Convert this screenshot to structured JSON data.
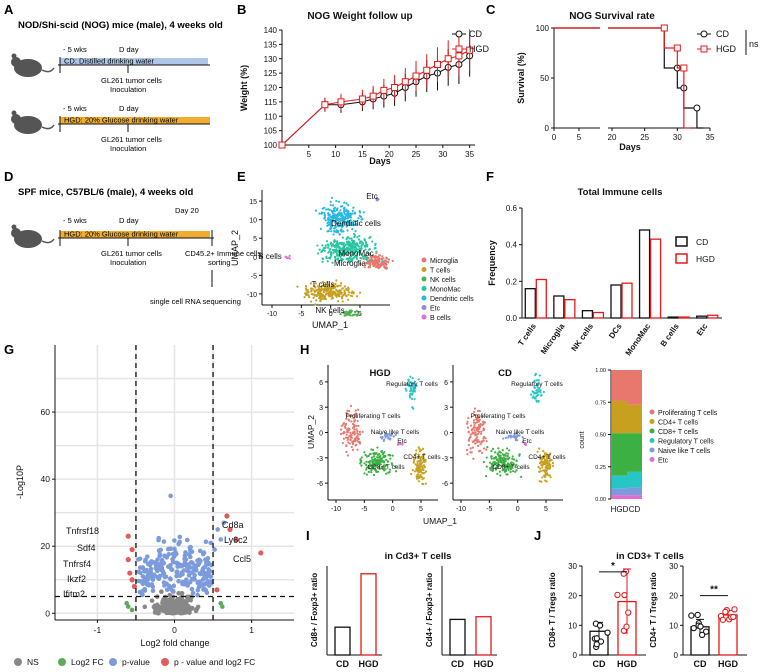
{
  "colors": {
    "cd": "#111111",
    "hgd": "#e41a1c",
    "water": "#aec7e8",
    "glucose": "#f0ad30",
    "ns": "#888888",
    "log2fc": "#5daa5d",
    "pvalue": "#7b9bdc",
    "both": "#e35a5a"
  },
  "panels": {
    "A": "A",
    "B": "B",
    "C": "C",
    "D": "D",
    "E": "E",
    "F": "F",
    "G": "G",
    "H": "H",
    "I": "I",
    "J": "J"
  },
  "panel_a": {
    "title": "NOD/Shi-scid (NOG) mice (male), 4 weeks old",
    "wk": "- 5 wks",
    "dday": "D day",
    "bar1": "CD: Distilled drinking water",
    "bar2": "HGD: 20% Glucose drinking water",
    "event1": "GL261 tumor cells",
    "event2": "Inoculation"
  },
  "panel_d": {
    "title": "SPF mice, C57BL/6 (male), 4 weeks old",
    "wk": "- 5 wks",
    "dday": "D day",
    "day20": "Day 20",
    "bar": "HGD: 20% Glucose drinking water",
    "event1": "GL261 tumor cells",
    "event2": "Inoculation",
    "sort1": "CD45.2+ Immune cells",
    "sort2": "sorting",
    "seq": "single cell RNA sequencing"
  },
  "chart_data": [
    {
      "id": "B",
      "type": "line",
      "title": "NOG Weight follow up",
      "xlabel": "Days",
      "ylabel": "Weight (%)",
      "xlim": [
        0,
        36
      ],
      "ylim": [
        100,
        140
      ],
      "xticks": [
        5,
        10,
        15,
        20,
        25,
        30,
        35
      ],
      "yticks": [
        100,
        105,
        110,
        115,
        120,
        125,
        130,
        135,
        140
      ],
      "series": [
        {
          "name": "CD",
          "x": [
            0,
            8,
            11,
            15,
            17,
            19,
            21,
            23,
            25,
            27,
            29,
            31,
            33,
            35
          ],
          "y": [
            100,
            114,
            114,
            115,
            116,
            117,
            118,
            120,
            122,
            124,
            125,
            127,
            128,
            131
          ]
        },
        {
          "name": "HGD",
          "x": [
            0,
            8,
            11,
            15,
            17,
            19,
            21,
            23,
            25,
            27,
            29,
            31,
            33,
            35
          ],
          "y": [
            100,
            114,
            115,
            116,
            117,
            119,
            120,
            122,
            124,
            126,
            128,
            130,
            131,
            133
          ]
        }
      ]
    },
    {
      "id": "C",
      "type": "line",
      "title": "NOG Survival rate",
      "xlabel": "Days",
      "ylabel": "Survival (%)",
      "annotation": "ns",
      "xticks": [
        0,
        5,
        20,
        25,
        30,
        35
      ],
      "yticks": [
        0,
        50,
        100
      ],
      "series": [
        {
          "name": "CD",
          "x": [
            0,
            28,
            28,
            30,
            30,
            31,
            31,
            33,
            33,
            34
          ],
          "y": [
            100,
            100,
            60,
            60,
            40,
            40,
            20,
            20,
            0,
            0
          ]
        },
        {
          "name": "HGD",
          "x": [
            0,
            28,
            28,
            30,
            30,
            31,
            31,
            32
          ],
          "y": [
            100,
            100,
            80,
            80,
            60,
            60,
            0,
            0
          ]
        }
      ]
    },
    {
      "id": "E",
      "type": "scatter",
      "xlabel": "UMAP_1",
      "ylabel": "UMAP_2",
      "xticks": [
        -10,
        -5,
        0,
        5
      ],
      "yticks": [
        -10,
        -5,
        0,
        5,
        10,
        15
      ],
      "legend": [
        "Microglia",
        "T cells",
        "NK cells",
        "MonoMac",
        "Dendritic cells",
        "Etc",
        "B cells"
      ],
      "labels": [
        "Etc",
        "Dendritic cells",
        "MonoMac",
        "B cells",
        "T cells",
        "Microglia",
        "NK cells"
      ]
    },
    {
      "id": "F",
      "type": "bar",
      "title": "Total Immune cells",
      "ylabel": "Frequency",
      "ylim": [
        0,
        0.6
      ],
      "yticks": [
        0.0,
        0.2,
        0.4,
        0.6
      ],
      "categories": [
        "T cells",
        "Microglia",
        "NK cells",
        "DCs",
        "MonoMac",
        "B cells",
        "Etc"
      ],
      "series": [
        {
          "name": "CD",
          "values": [
            0.16,
            0.12,
            0.04,
            0.18,
            0.48,
            0.005,
            0.01
          ]
        },
        {
          "name": "HGD",
          "values": [
            0.21,
            0.1,
            0.03,
            0.19,
            0.43,
            0.005,
            0.015
          ]
        }
      ]
    },
    {
      "id": "G",
      "type": "scatter",
      "xlabel": "Log2 fold change",
      "ylabel": "-Log10P",
      "xticks": [
        -1,
        0,
        1
      ],
      "yticks": [
        0,
        20,
        40,
        60
      ],
      "genes": [
        "Tnfrsf18",
        "Sdf4",
        "Tnfrsf4",
        "Ikzf2",
        "Ifitm2",
        "Cd8a",
        "Ly6c2",
        "Ccl5"
      ],
      "legend": [
        "NS",
        "Log2 FC",
        "p-value",
        "p - value and log2 FC"
      ]
    },
    {
      "id": "H",
      "type": "scatter",
      "panels": [
        "HGD",
        "CD"
      ],
      "xlabel": "UMAP_1",
      "ylabel": "UMAP_2",
      "xticks": [
        -10,
        -5,
        0,
        5
      ],
      "yticks": [
        -6,
        -3,
        0,
        3,
        6
      ],
      "labels": [
        "Regulatory T cells",
        "Proliferating T cells",
        "Naive like T cells",
        "Etc",
        "CD4+ T cells",
        "CD8+ T cells"
      ],
      "stacked": {
        "categories": [
          "HGD",
          "CD"
        ],
        "ylabel": "count",
        "yticks": [
          0.0,
          0.25,
          0.5,
          0.75,
          1.0
        ],
        "legend": [
          "Proliferating T cells",
          "CD4+ T cells",
          "CD8+ T cells",
          "Regulatory T cells",
          "Naive like T cells",
          "Etc"
        ],
        "values": {
          "HGD": [
            0.24,
            0.25,
            0.33,
            0.1,
            0.05,
            0.03
          ],
          "CD": [
            0.27,
            0.22,
            0.3,
            0.12,
            0.06,
            0.03
          ]
        }
      }
    },
    {
      "id": "I",
      "type": "bar",
      "title": "in Cd3+ T cells",
      "charts": [
        {
          "ylabel": "Cd8+ / Foxp3+ ratio",
          "categories": [
            "CD",
            "HGD"
          ],
          "values": [
            1.25,
            3.65
          ]
        },
        {
          "ylabel": "Cd4+ / Foxp3+ ratio",
          "categories": [
            "CD",
            "HGD"
          ],
          "values": [
            1.6,
            1.72
          ]
        }
      ]
    },
    {
      "id": "J",
      "type": "bar",
      "title": "in CD3+ T cells",
      "charts": [
        {
          "ylabel": "CD8+ T / Tregs ratio",
          "categories": [
            "CD",
            "HGD"
          ],
          "values": [
            8,
            18
          ],
          "yticks": [
            0,
            10,
            20,
            30
          ],
          "sig": "*"
        },
        {
          "ylabel": "CD4+ T / Tregs ratio",
          "categories": [
            "CD",
            "HGD"
          ],
          "values": [
            9.5,
            13.5
          ],
          "yticks": [
            0,
            10,
            20,
            30
          ],
          "sig": "**"
        }
      ]
    }
  ]
}
